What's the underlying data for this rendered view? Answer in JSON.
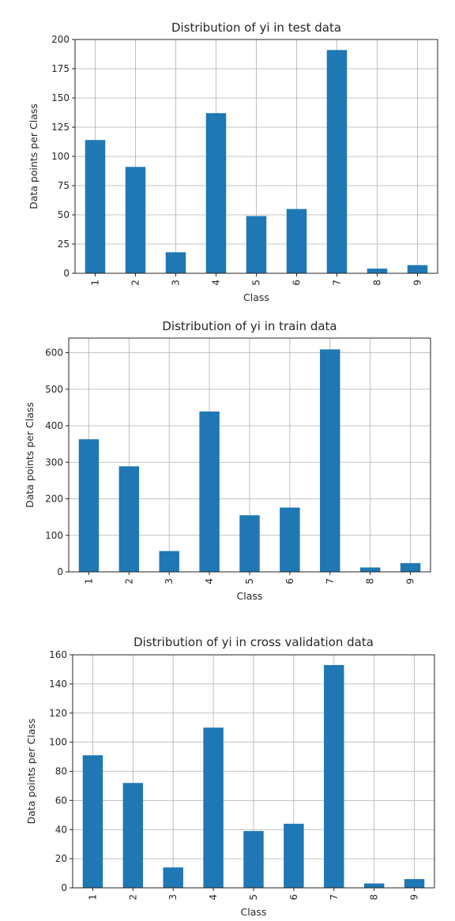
{
  "chart_data": [
    {
      "type": "bar",
      "title": "Distribution of yi in test data",
      "xlabel": "Class",
      "ylabel": "Data points per Class",
      "categories": [
        "1",
        "2",
        "3",
        "4",
        "5",
        "6",
        "7",
        "8",
        "9"
      ],
      "values": [
        114,
        91,
        18,
        137,
        49,
        55,
        191,
        4,
        7
      ],
      "ylim": [
        0,
        200
      ],
      "yticks": [
        0,
        25,
        50,
        75,
        100,
        125,
        150,
        175,
        200
      ],
      "grid": true,
      "bar_color": "#1f77b4"
    },
    {
      "type": "bar",
      "title": "Distribution of yi in train data",
      "xlabel": "Class",
      "ylabel": "Data points per Class",
      "categories": [
        "1",
        "2",
        "3",
        "4",
        "5",
        "6",
        "7",
        "8",
        "9"
      ],
      "values": [
        363,
        289,
        57,
        439,
        155,
        176,
        609,
        12,
        24
      ],
      "ylim": [
        0,
        640
      ],
      "yticks": [
        0,
        100,
        200,
        300,
        400,
        500,
        600
      ],
      "grid": true,
      "bar_color": "#1f77b4"
    },
    {
      "type": "bar",
      "title": "Distribution of yi in cross validation data",
      "xlabel": "Class",
      "ylabel": "Data points per Class",
      "categories": [
        "1",
        "2",
        "3",
        "4",
        "5",
        "6",
        "7",
        "8",
        "9"
      ],
      "values": [
        91,
        72,
        14,
        110,
        39,
        44,
        153,
        3,
        6
      ],
      "ylim": [
        0,
        160
      ],
      "yticks": [
        0,
        20,
        40,
        60,
        80,
        100,
        120,
        140,
        160
      ],
      "grid": true,
      "bar_color": "#1f77b4"
    }
  ]
}
